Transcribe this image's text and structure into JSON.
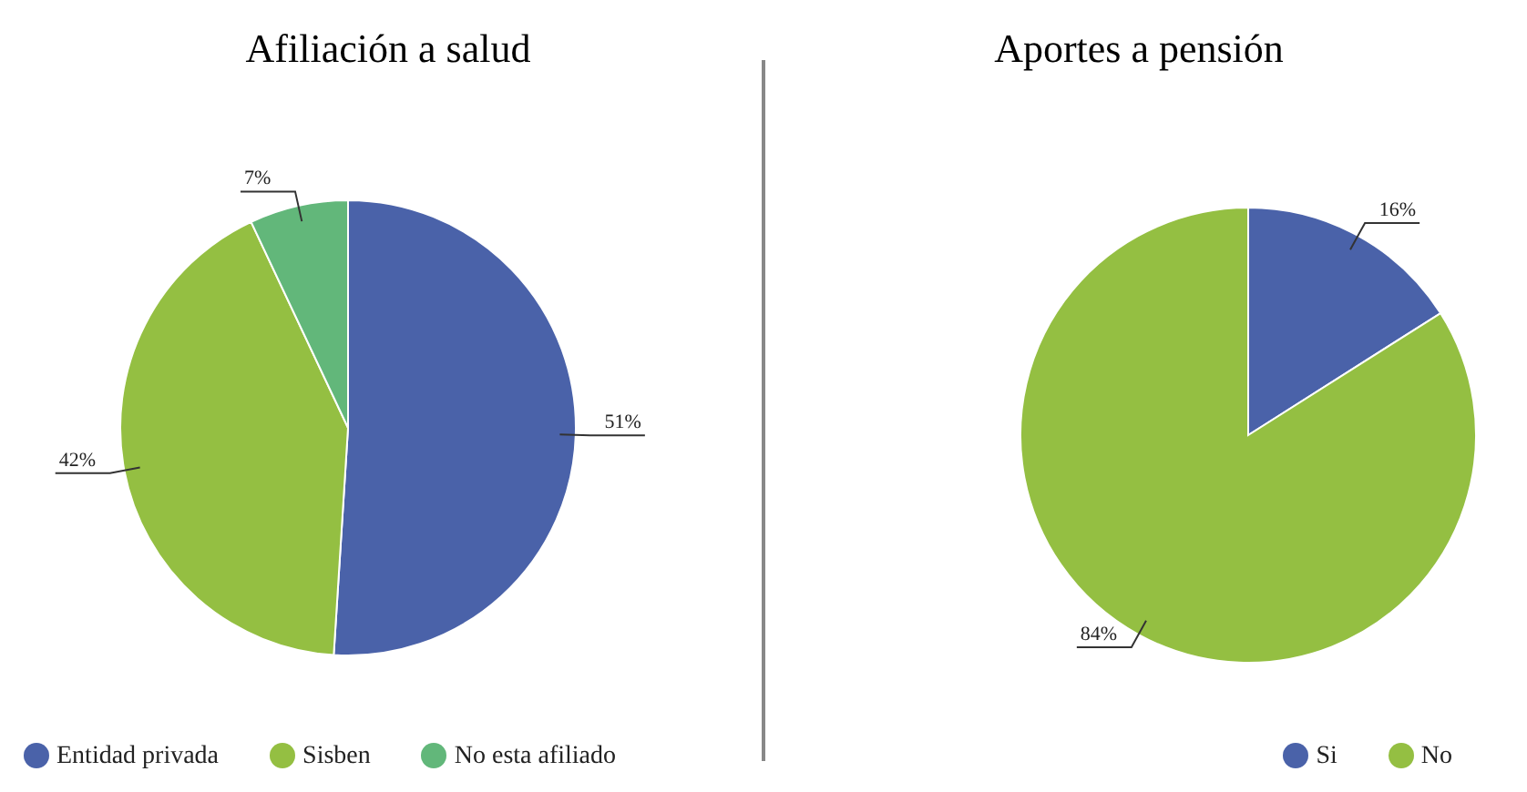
{
  "chart_data": [
    {
      "type": "pie",
      "title": "Afiliación a salud",
      "categories": [
        "Entidad privada",
        "Sisben",
        "No esta afiliado"
      ],
      "values": [
        51,
        42,
        7
      ],
      "value_labels": [
        "51%",
        "42%",
        "7%"
      ],
      "colors": [
        "#4a62a9",
        "#94bf42",
        "#62b77a"
      ],
      "legend": "bottom left"
    },
    {
      "type": "pie",
      "title": "Aportes a pensión",
      "categories": [
        "Si",
        "No"
      ],
      "values": [
        16,
        84
      ],
      "value_labels": [
        "16%",
        "84%"
      ],
      "colors": [
        "#4a62a9",
        "#94bf42"
      ],
      "legend": "bottom right"
    }
  ]
}
